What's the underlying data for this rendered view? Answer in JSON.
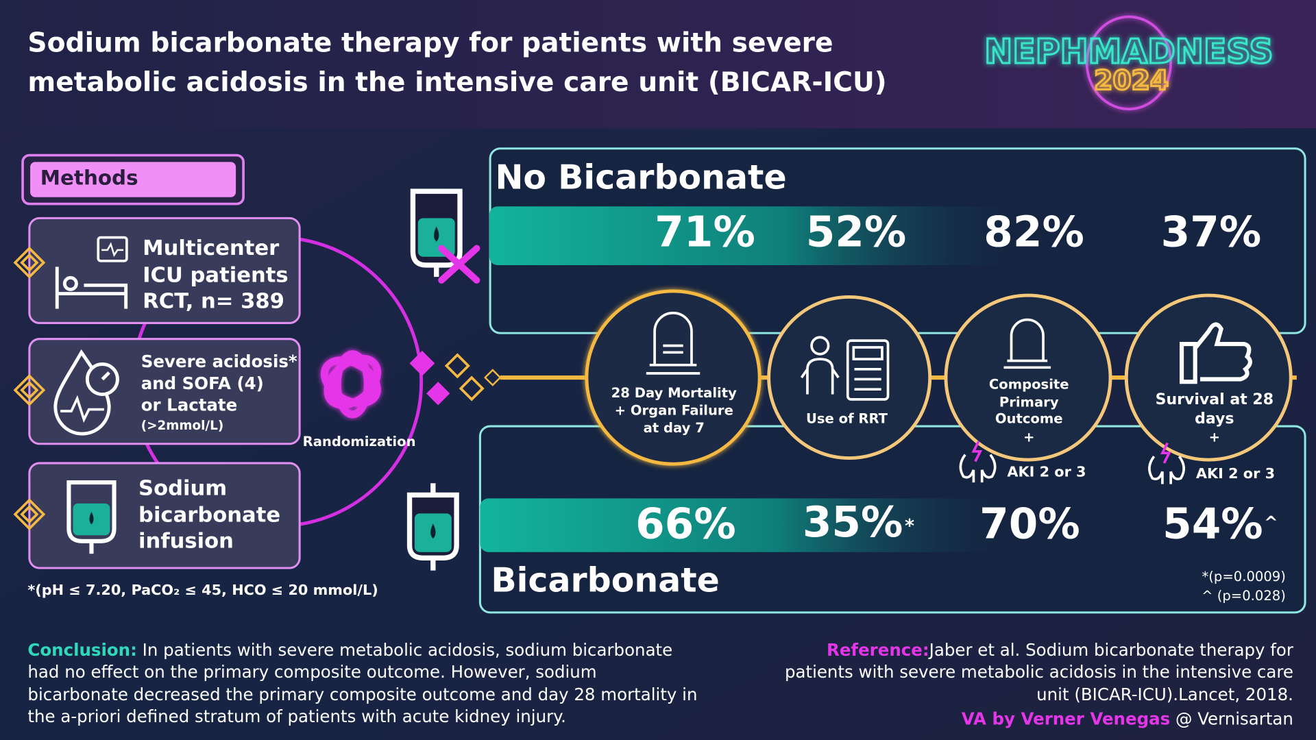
{
  "header": {
    "title_lines": [
      "Sodium bicarbonate therapy for patients with severe",
      "metabolic acidosis in the intensive care unit (BICAR-ICU)"
    ],
    "logo_name": "NEPHMADNESS",
    "logo_year": "2024"
  },
  "methods": {
    "label": "Methods",
    "items": [
      [
        "Multicenter",
        "ICU patients",
        "RCT, n= 389"
      ],
      [
        "Severe acidosis*",
        "and SOFA (4)",
        "or Lactate",
        "(>2mmol/L)"
      ],
      [
        "Sodium",
        "bicarbonate",
        "infusion"
      ]
    ],
    "randomization": "Randomization",
    "footnote": "*(pH  ≤ 7.20, PaCO₂  ≤ 45, HCO  ≤ 20 mmol/L)"
  },
  "outcomes": [
    [
      "28 Day Mortality",
      "+ Organ Failure",
      "at day 7"
    ],
    [
      "Use of RRT"
    ],
    [
      "Composite",
      "Primary",
      "Outcome",
      "+"
    ],
    [
      "Survival at 28",
      "days",
      "+"
    ]
  ],
  "aki_labels": [
    "AKI 2 or 3",
    "AKI 2 or 3"
  ],
  "groups": {
    "control": {
      "label": "No Bicarbonate",
      "values": [
        "71%",
        "52%",
        "82%",
        "37%"
      ]
    },
    "treatment": {
      "label": "Bicarbonate",
      "values": [
        "66%",
        "35%",
        "70%",
        "54%"
      ],
      "markers": [
        "*",
        "^"
      ]
    }
  },
  "p_values": [
    "*(p=0.0009)",
    "^ (p=0.028)"
  ],
  "conclusion": {
    "label": "Conclusion:",
    "lines": [
      "In patients with severe metabolic acidosis, sodium bicarbonate",
      "had no effect on the primary composite outcome. However, sodium",
      "bicarbonate decreased the primary composite outcome and day 28 mortality in",
      "the a-priori defined stratum of patients with acute kidney injury."
    ]
  },
  "reference": {
    "label": "Reference:",
    "lines": [
      "Jaber et al. Sodium bicarbonate therapy for",
      "patients with severe metabolic acidosis in the intensive care",
      "unit (BICAR-ICU).Lancet, 2018."
    ],
    "credit": "VA by Verner Venegas",
    "handle": "@ Vernisartan"
  }
}
